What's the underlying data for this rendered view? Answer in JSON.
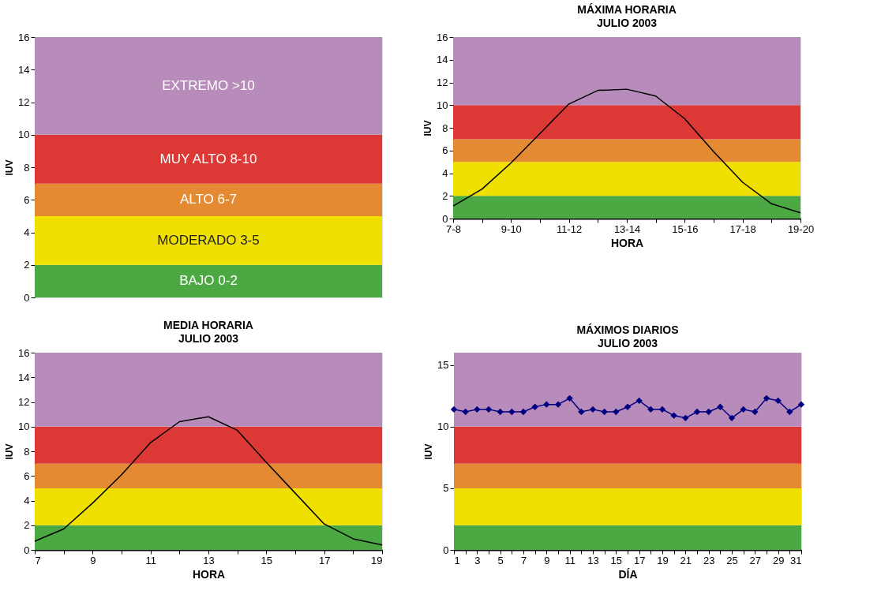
{
  "chart_data": [
    {
      "type": "bar",
      "stacked": true,
      "ylabel": "IUV",
      "categories": [
        null
      ],
      "ylim": [
        0,
        16
      ],
      "yticks": [
        0,
        2,
        4,
        6,
        8,
        10,
        12,
        14,
        16
      ],
      "tick_labels": "y",
      "series": [
        {
          "name": "BAJO 0-2",
          "color": "#4ca843",
          "values": [
            2
          ]
        },
        {
          "name": "MODERADO 3-5",
          "color": "#f0e000",
          "values": [
            3
          ]
        },
        {
          "name": "ALTO 6-7",
          "color": "#e48a33",
          "values": [
            2
          ]
        },
        {
          "name": "MUY ALTO 8-10",
          "color": "#dc3836",
          "values": [
            3
          ]
        },
        {
          "name": "EXTREMO >10",
          "color": "#b88cba",
          "values": [
            6
          ]
        }
      ]
    },
    {
      "type": "line",
      "title": "MÁXIMA HORARIA",
      "subtitle": "JULIO 2003",
      "xlabel": "HORA",
      "ylabel": "IUV",
      "categories": [
        "7-8",
        null,
        "9-10",
        null,
        "11-12",
        null,
        "13-14",
        null,
        "15-16",
        null,
        "17-18",
        null,
        "19-20"
      ],
      "ylim": [
        0,
        16
      ],
      "yticks": [
        0,
        2,
        4,
        6,
        8,
        10,
        12,
        14,
        16
      ],
      "series": [
        {
          "color": "#000000",
          "values": [
            1.1,
            2.6,
            4.9,
            7.5,
            10.1,
            11.3,
            11.4,
            10.8,
            8.8,
            5.9,
            3.2,
            1.3,
            0.5
          ]
        }
      ],
      "bands": [
        {
          "axis": "y",
          "from": 0,
          "to": 2,
          "color": "#4ca843"
        },
        {
          "axis": "y",
          "from": 2,
          "to": 5,
          "color": "#f0e000"
        },
        {
          "axis": "y",
          "from": 5,
          "to": 7,
          "color": "#e48a33"
        },
        {
          "axis": "y",
          "from": 7,
          "to": 10,
          "color": "#dc3836"
        },
        {
          "axis": "y",
          "from": 10,
          "to": 16,
          "color": "#b88cba"
        }
      ]
    },
    {
      "type": "line",
      "title": "MEDIA HORARIA",
      "subtitle": "JULIO 2003",
      "xlabel": "HORA",
      "ylabel": "IUV",
      "x": [
        7,
        8,
        9,
        10,
        11,
        12,
        13,
        14,
        15,
        16,
        17,
        18,
        19
      ],
      "xlim": [
        7,
        19
      ],
      "xticks": [
        7,
        {
          "value": 8,
          "label": null
        },
        9,
        {
          "value": 10,
          "label": null
        },
        11,
        {
          "value": 12,
          "label": null
        },
        13,
        {
          "value": 14,
          "label": null
        },
        15,
        {
          "value": 16,
          "label": null
        },
        17,
        {
          "value": 18,
          "label": null
        },
        19
      ],
      "ylim": [
        0,
        16
      ],
      "yticks": [
        0,
        2,
        4,
        6,
        8,
        10,
        12,
        14,
        16
      ],
      "series": [
        {
          "color": "#000000",
          "values": [
            0.7,
            1.7,
            3.8,
            6.1,
            8.7,
            10.4,
            10.8,
            9.7,
            7.1,
            4.6,
            2.1,
            0.9,
            0.4
          ]
        }
      ],
      "bands": [
        {
          "axis": "y",
          "from": 0,
          "to": 2,
          "color": "#4ca843"
        },
        {
          "axis": "y",
          "from": 2,
          "to": 5,
          "color": "#f0e000"
        },
        {
          "axis": "y",
          "from": 5,
          "to": 7,
          "color": "#e48a33"
        },
        {
          "axis": "y",
          "from": 7,
          "to": 10,
          "color": "#dc3836"
        },
        {
          "axis": "y",
          "from": 10,
          "to": 16,
          "color": "#b88cba"
        }
      ]
    },
    {
      "type": "line",
      "title": "MÁXIMOS  DIARIOS",
      "subtitle": "JULIO 2003",
      "xlabel": "DÍA",
      "ylabel": "IUV",
      "marker": "diamond",
      "x": [
        1,
        2,
        3,
        4,
        5,
        6,
        7,
        8,
        9,
        10,
        11,
        12,
        13,
        14,
        15,
        16,
        17,
        18,
        19,
        20,
        21,
        22,
        23,
        24,
        25,
        26,
        27,
        28,
        29,
        30,
        31
      ],
      "xlim": [
        1,
        31
      ],
      "xticks": [
        1,
        {
          "value": 2,
          "label": null
        },
        3,
        {
          "value": 4,
          "label": null
        },
        5,
        {
          "value": 6,
          "label": null
        },
        7,
        {
          "value": 8,
          "label": null
        },
        9,
        {
          "value": 10,
          "label": null
        },
        11,
        {
          "value": 12,
          "label": null
        },
        13,
        {
          "value": 14,
          "label": null
        },
        15,
        {
          "value": 16,
          "label": null
        },
        17,
        {
          "value": 18,
          "label": null
        },
        19,
        {
          "value": 20,
          "label": null
        },
        21,
        {
          "value": 22,
          "label": null
        },
        23,
        {
          "value": 24,
          "label": null
        },
        25,
        {
          "value": 26,
          "label": null
        },
        27,
        {
          "value": 28,
          "label": null
        },
        29,
        {
          "value": 30,
          "label": null
        },
        31
      ],
      "ylim": [
        0,
        16
      ],
      "yticks": [
        0,
        5,
        10,
        15
      ],
      "series": [
        {
          "color": "#000080",
          "values": [
            11.4,
            11.2,
            11.4,
            11.4,
            11.2,
            11.2,
            11.2,
            11.6,
            11.8,
            11.8,
            12.3,
            11.2,
            11.4,
            11.2,
            11.2,
            11.6,
            12.1,
            11.4,
            11.4,
            10.9,
            10.7,
            11.2,
            11.2,
            11.6,
            10.7,
            11.4,
            11.2,
            12.3,
            12.1,
            11.2,
            11.8
          ]
        }
      ],
      "bands": [
        {
          "axis": "y",
          "from": 0,
          "to": 2,
          "color": "#4ca843"
        },
        {
          "axis": "y",
          "from": 2,
          "to": 5,
          "color": "#f0e000"
        },
        {
          "axis": "y",
          "from": 5,
          "to": 7,
          "color": "#e48a33"
        },
        {
          "axis": "y",
          "from": 7,
          "to": 10,
          "color": "#dc3836"
        },
        {
          "axis": "y",
          "from": 10,
          "to": 16,
          "color": "#b88cba"
        }
      ]
    }
  ]
}
